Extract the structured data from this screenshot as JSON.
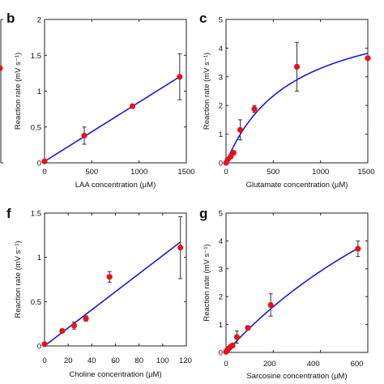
{
  "panels": [
    {
      "id": "a",
      "visible_label": "",
      "chart_data": {
        "type": "scatter",
        "partial": true,
        "points": [
          {
            "y_frac": 0.66
          }
        ],
        "marker_color": "#e8121a"
      }
    },
    {
      "id": "b",
      "label": "b",
      "chart_data": {
        "type": "scatter",
        "xlabel": "LAA concentration (µM)",
        "ylabel": "Reaction rate (mV s⁻¹)",
        "xlim": [
          0,
          1500
        ],
        "ylim": [
          0,
          2
        ],
        "xticks": [
          "0",
          "500",
          "1000",
          "1500"
        ],
        "yticks": [
          "0",
          "0.5",
          "1",
          "1.5",
          "2"
        ],
        "points": [
          {
            "x": 0,
            "y": 0.02,
            "err": 0
          },
          {
            "x": 420,
            "y": 0.38,
            "err": 0.12
          },
          {
            "x": 930,
            "y": 0.79,
            "err": 0
          },
          {
            "x": 1430,
            "y": 1.2,
            "err": 0.32
          }
        ],
        "fit": {
          "type": "line",
          "slope": 0.000826,
          "intercept": 0.02,
          "x_range": [
            0,
            1430
          ]
        },
        "marker_color": "#e8121a",
        "fit_color": "#1a1adc"
      }
    },
    {
      "id": "c",
      "label": "c",
      "chart_data": {
        "type": "scatter",
        "xlabel": "Glutamate concentration (µM)",
        "ylabel": "Reaction rate (mV s⁻¹)",
        "xlim": [
          0,
          1500
        ],
        "ylim": [
          0,
          5
        ],
        "xticks": [
          "0",
          "500",
          "1000",
          "1500"
        ],
        "yticks": [
          "0",
          "1",
          "2",
          "3",
          "4",
          "5"
        ],
        "points": [
          {
            "x": 0,
            "y": 0.0,
            "err": 0
          },
          {
            "x": 20,
            "y": 0.12,
            "err": 0
          },
          {
            "x": 50,
            "y": 0.22,
            "err": 0
          },
          {
            "x": 80,
            "y": 0.35,
            "err": 0
          },
          {
            "x": 150,
            "y": 1.15,
            "err": 0.35
          },
          {
            "x": 300,
            "y": 1.88,
            "err": 0.12
          },
          {
            "x": 750,
            "y": 3.35,
            "err": 0.85
          },
          {
            "x": 1500,
            "y": 3.65,
            "err": 0
          }
        ],
        "fit": {
          "type": "michaelis-menten",
          "vmax": 5.6,
          "km": 700,
          "x_range": [
            0,
            1500
          ]
        },
        "marker_color": "#e8121a",
        "fit_color": "#1a1adc"
      }
    },
    {
      "id": "f",
      "label": "f",
      "chart_data": {
        "type": "scatter",
        "xlabel": "Choline concentration (µM)",
        "ylabel": "Reaction rate (mV s⁻¹)",
        "xlim": [
          0,
          120
        ],
        "ylim": [
          0,
          1.5
        ],
        "xticks": [
          "0",
          "20",
          "40",
          "60",
          "80",
          "100",
          "120"
        ],
        "yticks": [
          "0",
          "0.5",
          "1",
          "1.5"
        ],
        "points": [
          {
            "x": 0,
            "y": 0.02,
            "err": 0
          },
          {
            "x": 15,
            "y": 0.17,
            "err": 0.02
          },
          {
            "x": 25,
            "y": 0.23,
            "err": 0.04
          },
          {
            "x": 35,
            "y": 0.31,
            "err": 0.03
          },
          {
            "x": 55,
            "y": 0.78,
            "err": 0.06
          },
          {
            "x": 115,
            "y": 1.11,
            "err": 0.35
          }
        ],
        "fit": {
          "type": "line",
          "slope": 0.0102,
          "intercept": 0.0,
          "x_range": [
            0,
            115
          ]
        },
        "marker_color": "#e8121a",
        "fit_color": "#1a1adc"
      }
    },
    {
      "id": "g",
      "label": "g",
      "chart_data": {
        "type": "scatter",
        "xlabel": "Sarcosine concentration (µM)",
        "ylabel": "Reaction rate (mV s⁻¹)",
        "xlim": [
          0,
          650
        ],
        "ylim": [
          0,
          5
        ],
        "xticks": [
          "0",
          "200",
          "400",
          "600"
        ],
        "yticks": [
          "0",
          "1",
          "2",
          "3",
          "4",
          "5"
        ],
        "points": [
          {
            "x": 0,
            "y": 0.02,
            "err": 0
          },
          {
            "x": 5,
            "y": 0.08,
            "err": 0
          },
          {
            "x": 10,
            "y": 0.12,
            "err": 0
          },
          {
            "x": 15,
            "y": 0.16,
            "err": 0
          },
          {
            "x": 20,
            "y": 0.2,
            "err": 0
          },
          {
            "x": 30,
            "y": 0.25,
            "err": 0
          },
          {
            "x": 50,
            "y": 0.55,
            "err": 0.22
          },
          {
            "x": 100,
            "y": 0.88,
            "err": 0.07
          },
          {
            "x": 205,
            "y": 1.7,
            "err": 0.4
          },
          {
            "x": 605,
            "y": 3.72,
            "err": 0.28
          }
        ],
        "fit": {
          "type": "michaelis-menten",
          "vmax": 13.0,
          "km": 1500,
          "x_range": [
            0,
            605
          ]
        },
        "marker_color": "#e8121a",
        "fit_color": "#1a1adc"
      }
    }
  ]
}
